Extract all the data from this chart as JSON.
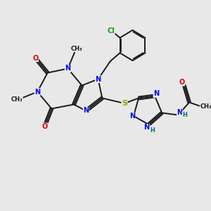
{
  "bg_color": "#e8e8e8",
  "bond_color": "#1a1a1a",
  "n_color": "#0000ee",
  "o_color": "#dd0000",
  "s_color": "#999900",
  "cl_color": "#00aa00",
  "h_color": "#007070",
  "figsize": [
    3.0,
    3.0
  ],
  "dpi": 100,
  "xlim": [
    0,
    10
  ],
  "ylim": [
    0,
    10
  ]
}
